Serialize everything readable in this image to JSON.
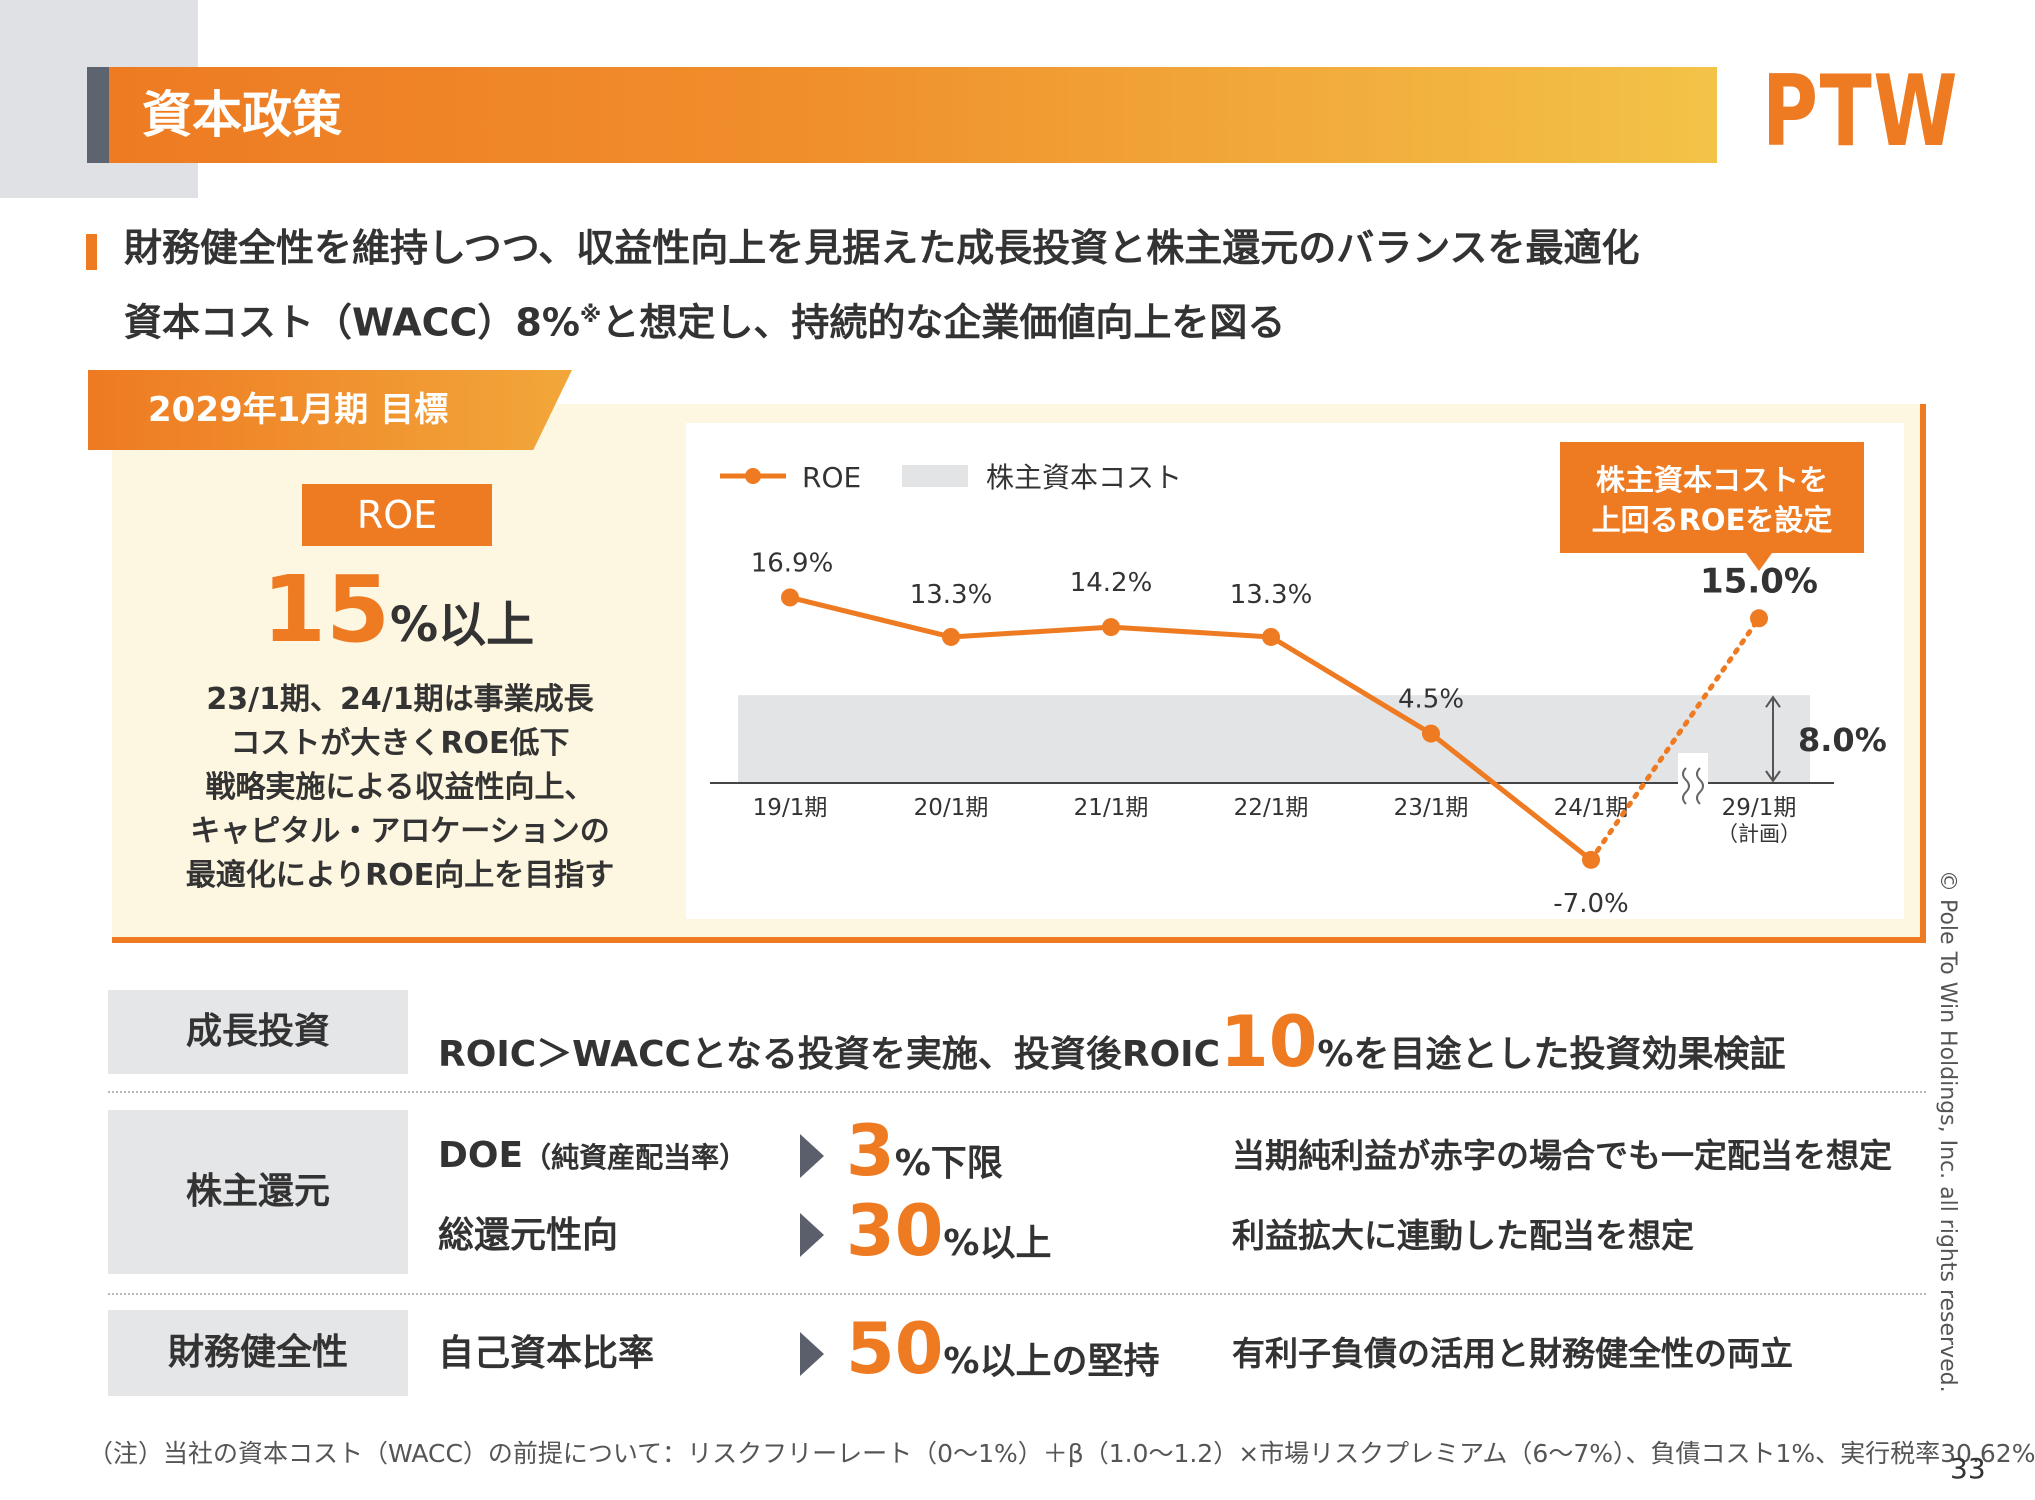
{
  "header": {
    "title": "資本政策",
    "logo_text": "PTW"
  },
  "headline": {
    "line1": "財務健全性を維持しつつ、収益性向上を見据えた成長投資と株主還元のバランスを最適化",
    "line2_prefix": "資本コスト（WACC）8%",
    "line2_mark": "※",
    "line2_suffix": "と想定し、持続的な企業価値向上を図る"
  },
  "target": {
    "tag": "2029年1月期 目標",
    "roe_label": "ROE",
    "roe_value": "15",
    "roe_unit": "%以上",
    "description": [
      "23/1期、24/1期は事業成長",
      "コストが大きくROE低下",
      "戦略実施による収益性向上、",
      "キャピタル・アロケーションの",
      "最適化によりROE向上を目指す"
    ]
  },
  "chart_data": {
    "type": "line",
    "categories": [
      "19/1期",
      "20/1期",
      "21/1期",
      "22/1期",
      "23/1期",
      "24/1期",
      "29/1期"
    ],
    "category_sublabels": [
      "",
      "",
      "",
      "",
      "",
      "",
      "（計画）"
    ],
    "series": [
      {
        "name": "ROE",
        "values": [
          16.9,
          13.3,
          14.2,
          13.3,
          4.5,
          -7.0,
          15.0
        ],
        "value_labels": [
          "16.9%",
          "13.3%",
          "14.2%",
          "13.3%",
          "4.5%",
          "-7.0%",
          "15.0%"
        ],
        "color": "#ee7a22",
        "last_segment_style": "dotted"
      }
    ],
    "cost_band": {
      "name": "株主資本コスト",
      "from": 0,
      "to": 8.0,
      "label": "8.0%",
      "color": "#e3e4e6"
    },
    "callout": [
      "株主資本コストを",
      "上回るROEを設定"
    ],
    "axis_break_between": [
      "24/1期",
      "29/1期"
    ],
    "ylim": [
      -9,
      19
    ],
    "legend_position": "top-left",
    "grid": false
  },
  "growth": {
    "label": "成長投資",
    "text_prefix": "ROIC＞WACCとなる投資を実施、投資後ROIC",
    "big": "10",
    "text_suffix": "%を目途とした投資効果検証"
  },
  "shareholder": {
    "label": "株主還元",
    "rows": [
      {
        "metric": "DOE",
        "metric_sub": "（純資産配当率）",
        "big": "3",
        "unit": "%下限",
        "note": "当期純利益が赤字の場合でも一定配当を想定"
      },
      {
        "metric": "総還元性向",
        "metric_sub": "",
        "big": "30",
        "unit": "%以上",
        "note": "利益拡大に連動した配当を想定"
      }
    ]
  },
  "financial": {
    "label": "財務健全性",
    "metric": "自己資本比率",
    "big": "50",
    "unit": "%以上の堅持",
    "note": "有利子負債の活用と財務健全性の両立"
  },
  "footer": {
    "note": "（注）当社の資本コスト（WACC）の前提について：リスクフリーレート（0〜1%）＋β（1.0〜1.2）×市場リスクプレミアム（6〜7%）、負債コスト1%、実行税率30.62%",
    "copyright": "© Pole To Win Holdings, Inc. all rights reserved.",
    "page_number": "33"
  }
}
